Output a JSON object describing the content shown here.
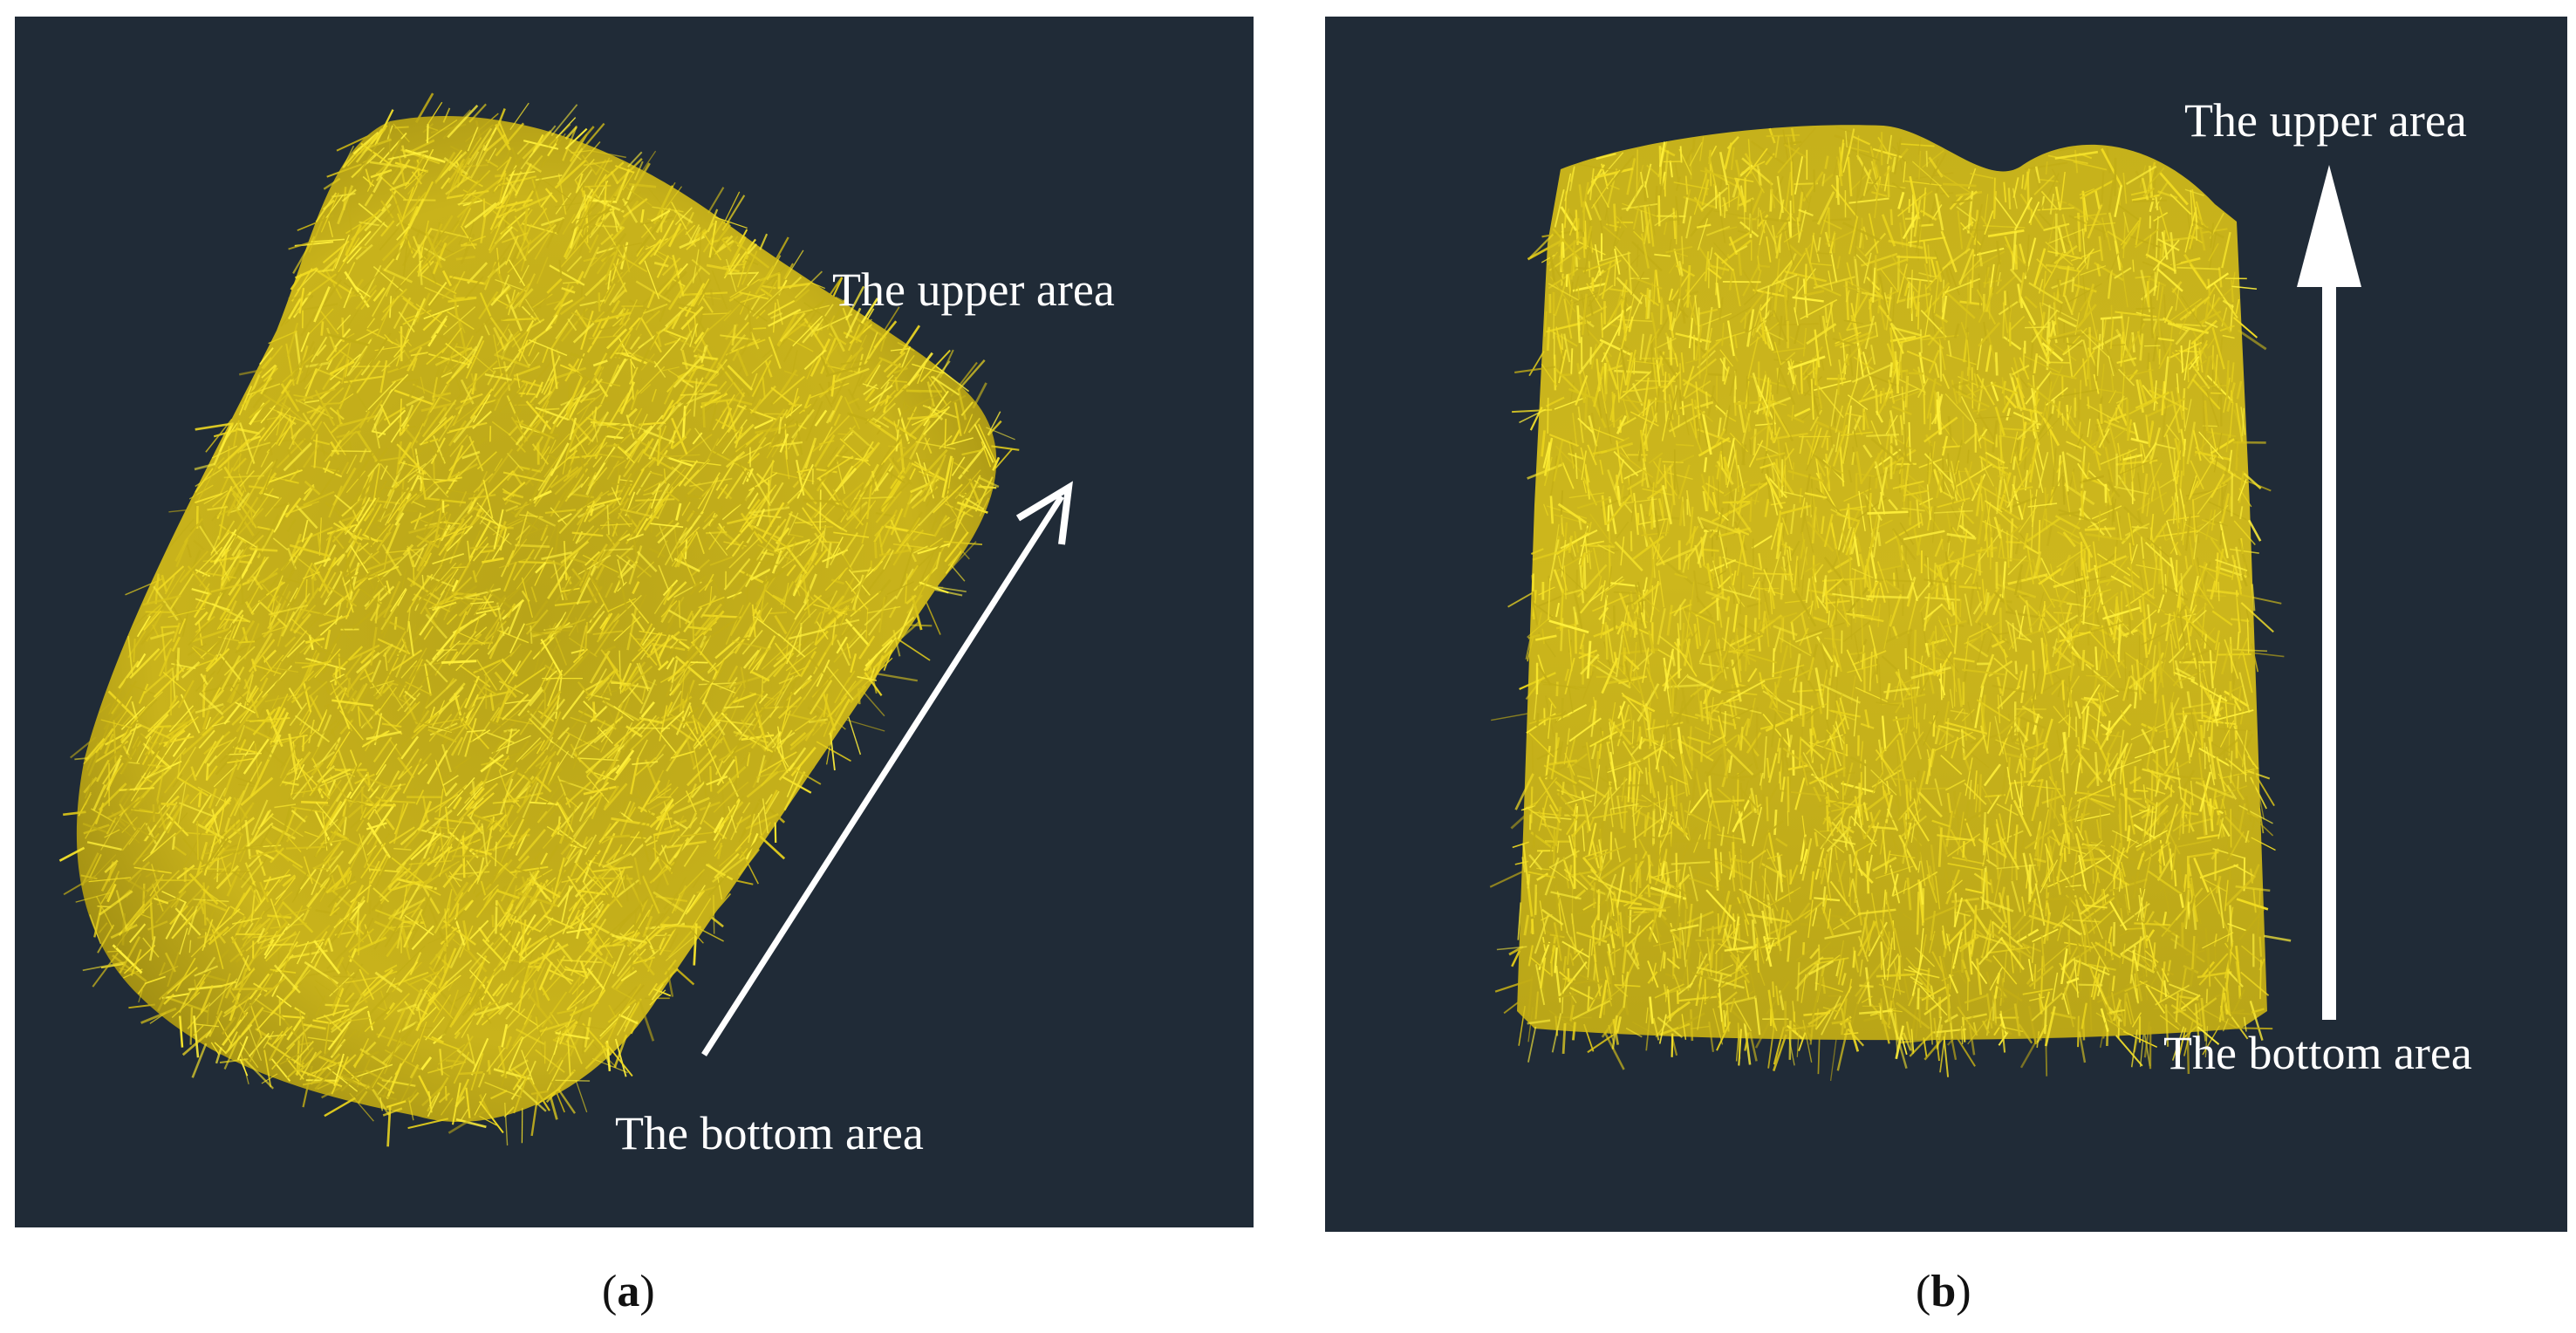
{
  "figure": {
    "panels": [
      {
        "id": "a",
        "caption_letter": "a",
        "upper_label": "The upper area",
        "bottom_label": "The bottom area",
        "arrow_direction": "diagonal-up-right",
        "fiber_color": "#e8d21c",
        "background_color": "#202b37"
      },
      {
        "id": "b",
        "caption_letter": "b",
        "upper_label": "The upper area",
        "bottom_label": "The bottom area",
        "arrow_direction": "vertical-up",
        "fiber_color": "#e8d21c",
        "background_color": "#202b37"
      }
    ]
  }
}
